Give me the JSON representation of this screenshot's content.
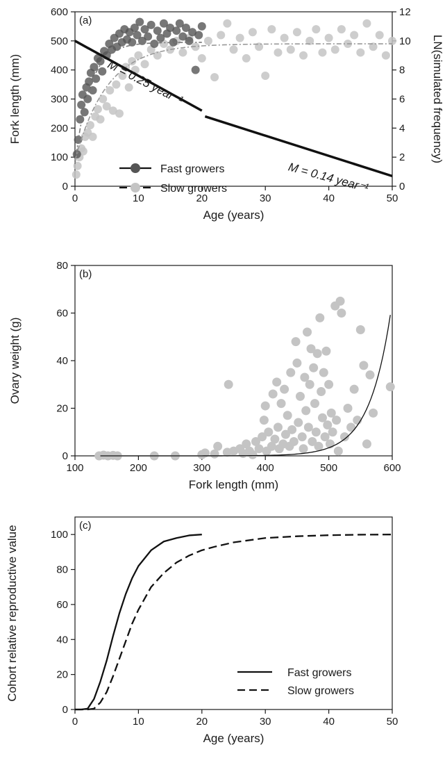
{
  "chart_data": [
    {
      "panel": "(a)",
      "type": "scatter",
      "xlabel": "Age (years)",
      "ylabel": "Fork length (mm)",
      "y2label": "LN(simulated frequency)",
      "xlim": [
        0,
        50
      ],
      "ylim": [
        0,
        600
      ],
      "y2lim": [
        0,
        12
      ],
      "xticks": [
        0,
        10,
        20,
        30,
        40,
        50
      ],
      "yticks": [
        0,
        100,
        200,
        300,
        400,
        500,
        600
      ],
      "y2ticks": [
        0,
        2,
        4,
        6,
        8,
        10,
        12
      ],
      "legend": {
        "position": "bottom-left",
        "entries": [
          {
            "label": "Fast growers",
            "line": "solid",
            "marker_color": "#555555"
          },
          {
            "label": "Slow growers",
            "line": "dashed",
            "marker_color": "#c4c4c4"
          }
        ]
      },
      "series": [
        {
          "name": "Fast growers",
          "marker_color": "#555555",
          "points": [
            [
              0.3,
              110
            ],
            [
              0.5,
              160
            ],
            [
              0.8,
              230
            ],
            [
              1,
              280
            ],
            [
              1.2,
              315
            ],
            [
              1.5,
              255
            ],
            [
              1.8,
              340
            ],
            [
              2,
              300
            ],
            [
              2.2,
              360
            ],
            [
              2.5,
              390
            ],
            [
              2.8,
              330
            ],
            [
              3,
              410
            ],
            [
              3.3,
              370
            ],
            [
              3.6,
              440
            ],
            [
              4,
              430
            ],
            [
              4.3,
              395
            ],
            [
              4.6,
              465
            ],
            [
              5,
              450
            ],
            [
              5.4,
              490
            ],
            [
              5.8,
              470
            ],
            [
              6.2,
              510
            ],
            [
              6.6,
              480
            ],
            [
              7,
              525
            ],
            [
              7.4,
              495
            ],
            [
              7.8,
              540
            ],
            [
              8.2,
              505
            ],
            [
              8.6,
              530
            ],
            [
              9,
              495
            ],
            [
              9.4,
              545
            ],
            [
              9.8,
              520
            ],
            [
              10.2,
              565
            ],
            [
              10.6,
              500
            ],
            [
              11,
              540
            ],
            [
              11.5,
              515
            ],
            [
              12,
              555
            ],
            [
              12.5,
              490
            ],
            [
              13,
              535
            ],
            [
              13.5,
              510
            ],
            [
              14,
              560
            ],
            [
              14.5,
              525
            ],
            [
              15,
              545
            ],
            [
              15.5,
              495
            ],
            [
              16,
              535
            ],
            [
              16.5,
              560
            ],
            [
              17,
              515
            ],
            [
              17.5,
              545
            ],
            [
              18,
              500
            ],
            [
              18.5,
              530
            ],
            [
              19,
              400
            ],
            [
              19.5,
              520
            ],
            [
              20,
              550
            ]
          ],
          "fit": {
            "Linf": 495,
            "K": 0.42,
            "t0": -0.4,
            "x_range": [
              0,
              20
            ]
          }
        },
        {
          "name": "Slow growers",
          "marker_color": "#c4c4c4",
          "points": [
            [
              0.2,
              40
            ],
            [
              0.4,
              70
            ],
            [
              0.7,
              100
            ],
            [
              1,
              130
            ],
            [
              1.3,
              120
            ],
            [
              1.6,
              170
            ],
            [
              2,
              185
            ],
            [
              2.4,
              210
            ],
            [
              2.8,
              170
            ],
            [
              3.2,
              240
            ],
            [
              3.6,
              265
            ],
            [
              4,
              230
            ],
            [
              4.4,
              300
            ],
            [
              5,
              275
            ],
            [
              5.5,
              330
            ],
            [
              6,
              260
            ],
            [
              6.5,
              350
            ],
            [
              7,
              250
            ],
            [
              7.5,
              380
            ],
            [
              8,
              410
            ],
            [
              8.5,
              340
            ],
            [
              9,
              430
            ],
            [
              9.5,
              400
            ],
            [
              10,
              450
            ],
            [
              11,
              420
            ],
            [
              12,
              470
            ],
            [
              13,
              450
            ],
            [
              14,
              490
            ],
            [
              15,
              470
            ],
            [
              16,
              500
            ],
            [
              17,
              460
            ],
            [
              18,
              510
            ],
            [
              19,
              480
            ],
            [
              20,
              440
            ],
            [
              21,
              500
            ],
            [
              22,
              375
            ],
            [
              23,
              520
            ],
            [
              24,
              560
            ],
            [
              25,
              470
            ],
            [
              26,
              510
            ],
            [
              27,
              440
            ],
            [
              28,
              530
            ],
            [
              29,
              480
            ],
            [
              30,
              380
            ],
            [
              31,
              540
            ],
            [
              32,
              460
            ],
            [
              33,
              510
            ],
            [
              34,
              470
            ],
            [
              35,
              530
            ],
            [
              36,
              450
            ],
            [
              37,
              500
            ],
            [
              38,
              540
            ],
            [
              39,
              460
            ],
            [
              40,
              510
            ],
            [
              41,
              470
            ],
            [
              42,
              540
            ],
            [
              43,
              490
            ],
            [
              44,
              520
            ],
            [
              45,
              460
            ],
            [
              46,
              560
            ],
            [
              47,
              480
            ],
            [
              48,
              520
            ],
            [
              49,
              450
            ],
            [
              50,
              500
            ]
          ],
          "fit": {
            "Linf": 490,
            "K": 0.2,
            "t0": -1.0,
            "x_range": [
              0,
              50
            ]
          }
        },
        {
          "name": "Mortality (secondary axis)",
          "type": "line",
          "axis": "y2",
          "segments": [
            {
              "x": [
                0,
                20
              ],
              "y": [
                10.0,
                5.2
              ]
            },
            {
              "x": [
                20.5,
                50
              ],
              "y": [
                4.8,
                0.7
              ]
            }
          ]
        }
      ],
      "annotations": [
        {
          "text": "M = 0.25 year⁻¹",
          "x": 5,
          "y": 8.2,
          "angle": 27
        },
        {
          "text": "M = 0.14 year⁻¹",
          "x": 33.5,
          "y": 1.1,
          "angle": 15.3
        }
      ]
    },
    {
      "panel": "(b)",
      "type": "scatter",
      "xlabel": "Fork length (mm)",
      "ylabel": "Ovary weight (g)",
      "xlim": [
        100,
        600
      ],
      "ylim": [
        0,
        80
      ],
      "xticks": [
        100,
        200,
        300,
        400,
        500,
        600
      ],
      "yticks": [
        0,
        20,
        40,
        60,
        80
      ],
      "marker_color": "#c4c4c4",
      "points": [
        [
          138,
          0
        ],
        [
          145,
          0.3
        ],
        [
          152,
          0
        ],
        [
          160,
          0.2
        ],
        [
          167,
          0
        ],
        [
          225,
          0
        ],
        [
          258,
          0
        ],
        [
          300,
          0.5
        ],
        [
          305,
          1.2
        ],
        [
          320,
          0.8
        ],
        [
          325,
          4
        ],
        [
          340,
          1.5
        ],
        [
          342,
          30
        ],
        [
          350,
          2
        ],
        [
          360,
          3
        ],
        [
          365,
          1
        ],
        [
          370,
          5
        ],
        [
          375,
          2
        ],
        [
          380,
          0.5
        ],
        [
          385,
          6
        ],
        [
          390,
          3
        ],
        [
          395,
          8
        ],
        [
          398,
          15
        ],
        [
          400,
          21
        ],
        [
          402,
          2
        ],
        [
          405,
          10
        ],
        [
          410,
          4
        ],
        [
          412,
          26
        ],
        [
          415,
          7
        ],
        [
          418,
          31
        ],
        [
          420,
          12
        ],
        [
          422,
          3
        ],
        [
          425,
          22
        ],
        [
          428,
          5
        ],
        [
          430,
          28
        ],
        [
          432,
          9
        ],
        [
          435,
          17
        ],
        [
          438,
          4
        ],
        [
          440,
          35
        ],
        [
          442,
          11
        ],
        [
          445,
          6
        ],
        [
          448,
          48
        ],
        [
          450,
          39
        ],
        [
          452,
          14
        ],
        [
          455,
          25
        ],
        [
          458,
          8
        ],
        [
          460,
          3
        ],
        [
          462,
          33
        ],
        [
          464,
          19
        ],
        [
          466,
          52
        ],
        [
          468,
          12
        ],
        [
          470,
          30
        ],
        [
          472,
          45
        ],
        [
          474,
          6
        ],
        [
          476,
          37
        ],
        [
          478,
          22
        ],
        [
          480,
          10
        ],
        [
          482,
          43
        ],
        [
          484,
          4
        ],
        [
          486,
          58
        ],
        [
          488,
          27
        ],
        [
          490,
          16
        ],
        [
          492,
          35
        ],
        [
          494,
          8
        ],
        [
          496,
          44
        ],
        [
          498,
          13
        ],
        [
          500,
          30
        ],
        [
          502,
          5
        ],
        [
          504,
          18
        ],
        [
          506,
          10
        ],
        [
          510,
          63
        ],
        [
          512,
          15
        ],
        [
          515,
          2
        ],
        [
          518,
          65
        ],
        [
          520,
          60
        ],
        [
          525,
          8
        ],
        [
          530,
          20
        ],
        [
          535,
          12
        ],
        [
          540,
          28
        ],
        [
          545,
          15
        ],
        [
          550,
          53
        ],
        [
          555,
          38
        ],
        [
          560,
          5
        ],
        [
          565,
          34
        ],
        [
          570,
          18
        ],
        [
          597,
          29
        ]
      ],
      "fit": {
        "a": 1.33e-06,
        "b": 0.0295,
        "x_range": [
          140,
          597
        ]
      }
    },
    {
      "panel": "(c)",
      "type": "line",
      "xlabel": "Age (years)",
      "ylabel": "Cohort relative reproductive value",
      "xlim": [
        0,
        50
      ],
      "ylim": [
        0,
        110
      ],
      "xticks": [
        0,
        10,
        20,
        30,
        40,
        50
      ],
      "yticks": [
        0,
        20,
        40,
        60,
        80,
        100
      ],
      "legend": {
        "position": "bottom-right",
        "entries": [
          {
            "label": "Fast growers",
            "line": "solid"
          },
          {
            "label": "Slow growers",
            "line": "dashed"
          }
        ]
      },
      "series": [
        {
          "name": "Fast growers",
          "line": "solid",
          "x": [
            0,
            1,
            2,
            3,
            4,
            5,
            6,
            7,
            8,
            9,
            10,
            12,
            14,
            16,
            18,
            20
          ],
          "y": [
            0,
            0,
            0.5,
            6,
            16,
            28,
            42,
            55,
            66,
            75,
            82,
            91,
            96,
            98,
            99.5,
            100
          ]
        },
        {
          "name": "Slow growers",
          "line": "dashed",
          "x": [
            0,
            2,
            3,
            4,
            5,
            6,
            7,
            8,
            9,
            10,
            12,
            14,
            16,
            18,
            20,
            22,
            25,
            30,
            35,
            40,
            45,
            50
          ],
          "y": [
            0,
            0,
            0.5,
            4,
            10,
            19,
            29,
            39,
            49,
            57,
            70,
            78,
            84,
            88,
            91,
            93,
            95.5,
            98,
            99,
            99.6,
            99.9,
            100
          ]
        }
      ]
    }
  ]
}
